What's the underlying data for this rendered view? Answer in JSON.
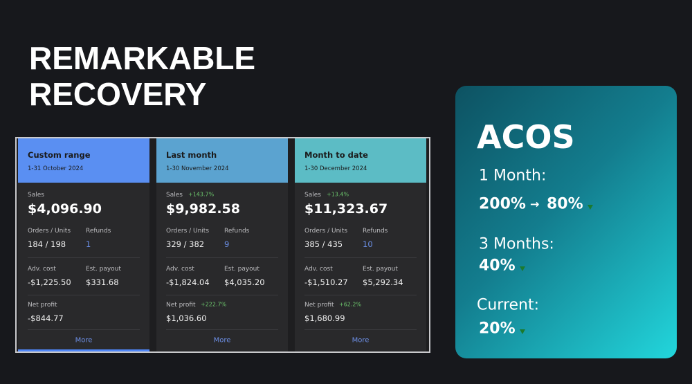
{
  "title": [
    "REMARKABLE",
    "RECOVERY"
  ],
  "cards": [
    {
      "title": "Custom range",
      "date": "1-31 October 2024",
      "sales_label": "Sales",
      "sales": "$4,096.90",
      "orders_label": "Orders / Units",
      "orders": "184 / 198",
      "refunds_label": "Refunds",
      "refunds": "1",
      "adv_label": "Adv. cost",
      "adv": "-$1,225.50",
      "payout_label": "Est. payout",
      "payout": "$331.68",
      "net_label": "Net profit",
      "net": "-$844.77",
      "more": "More"
    },
    {
      "title": "Last month",
      "date": "1-30 November 2024",
      "sales_label": "Sales",
      "sales_change": "+143.7%",
      "sales": "$9,982.58",
      "orders_label": "Orders / Units",
      "orders": "329 / 382",
      "refunds_label": "Refunds",
      "refunds": "9",
      "adv_label": "Adv. cost",
      "adv": "-$1,824.04",
      "payout_label": "Est. payout",
      "payout": "$4,035.20",
      "net_label": "Net profit",
      "net_change": "+222.7%",
      "net": "$1,036.60",
      "more": "More"
    },
    {
      "title": "Month to date",
      "date": "1-30 December 2024",
      "sales_label": "Sales",
      "sales_change": "+13.4%",
      "sales": "$11,323.67",
      "orders_label": "Orders / Units",
      "orders": "385 / 435",
      "refunds_label": "Refunds",
      "refunds": "10",
      "adv_label": "Adv. cost",
      "adv": "-$1,510.27",
      "payout_label": "Est. payout",
      "payout": "$5,292.34",
      "net_label": "Net profit",
      "net_change": "+62.2%",
      "net": "$1,680.99",
      "more": "More"
    }
  ],
  "acos": {
    "title": "ACOS",
    "items": [
      {
        "label": "1 Month:",
        "from": "200%",
        "to": "80%"
      },
      {
        "label": "3 Months:",
        "to": "40%"
      },
      {
        "label": "Current:",
        "to": "20%"
      }
    ]
  }
}
